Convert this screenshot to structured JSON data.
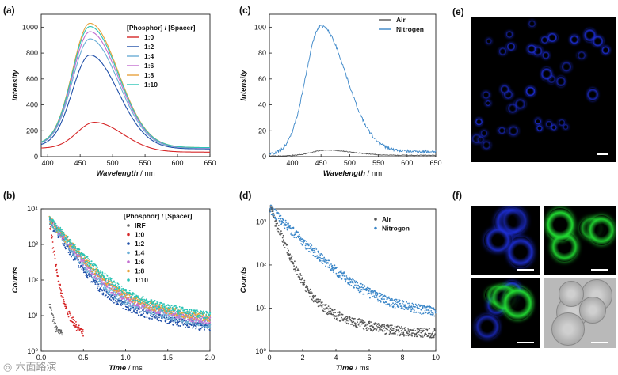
{
  "panel_labels": {
    "a": "(a)",
    "b": "(b)",
    "c": "(c)",
    "d": "(d)",
    "e": "(e)",
    "f": "(f)"
  },
  "watermark": "六面路演",
  "colors": {
    "ratio_1_0": "#d62728",
    "ratio_1_2": "#1f4fa8",
    "ratio_1_4": "#6baed6",
    "ratio_1_6": "#c36fd0",
    "ratio_1_8": "#e8a33d",
    "ratio_1_10": "#2bc4b6",
    "irf": "#666666",
    "air": "#555555",
    "nitrogen": "#3a86c8",
    "blue_channel": "#1e2fd6",
    "green_channel": "#22dd33"
  },
  "chart_data": [
    {
      "id": "a",
      "type": "line",
      "title": "",
      "xlabel": "Wavelength / nm",
      "ylabel": "Intensity",
      "xlim": [
        390,
        650
      ],
      "ylim": [
        0,
        1100
      ],
      "xticks": [
        400,
        450,
        500,
        550,
        600,
        650
      ],
      "yticks": [
        0,
        200,
        400,
        600,
        800,
        1000
      ],
      "legend_title": "[Phosphor] / [Spacer]",
      "legend_position": "top-right",
      "series": [
        {
          "name": "1:0",
          "peak_x": 472,
          "peak_y": 265,
          "start_y": 65,
          "end_y": 35
        },
        {
          "name": "1:2",
          "peak_x": 465,
          "peak_y": 785,
          "start_y": 80,
          "end_y": 60
        },
        {
          "name": "1:4",
          "peak_x": 465,
          "peak_y": 910,
          "start_y": 90,
          "end_y": 65
        },
        {
          "name": "1:6",
          "peak_x": 465,
          "peak_y": 965,
          "start_y": 92,
          "end_y": 68
        },
        {
          "name": "1:8",
          "peak_x": 465,
          "peak_y": 1030,
          "start_y": 95,
          "end_y": 70
        },
        {
          "name": "1:10",
          "peak_x": 465,
          "peak_y": 1005,
          "start_y": 95,
          "end_y": 70
        }
      ]
    },
    {
      "id": "b",
      "type": "scatter",
      "title": "",
      "xlabel": "Time / ms",
      "ylabel": "Counts",
      "xlim": [
        0,
        2.0
      ],
      "ylim_log": [
        1,
        10000
      ],
      "xticks": [
        0.0,
        0.5,
        1.0,
        1.5,
        2.0
      ],
      "ytick_labels": [
        "10⁰",
        "10¹",
        "10²",
        "10³",
        "10⁴"
      ],
      "log_y": true,
      "legend_title": "[Phosphor] / [Spacer]",
      "legend_position": "top-right",
      "series": [
        {
          "name": "IRF",
          "peak": 20,
          "tau": 0.03,
          "floor": 3,
          "end_x": 0.25
        },
        {
          "name": "1:0",
          "peak": 4500,
          "tau": 0.025,
          "floor": 1.5,
          "end_x": 0.5
        },
        {
          "name": "1:2",
          "peak": 4500,
          "tau": 0.12,
          "floor": 3,
          "end_x": 2.0
        },
        {
          "name": "1:4",
          "peak": 5000,
          "tau": 0.13,
          "floor": 3.5,
          "end_x": 2.0
        },
        {
          "name": "1:6",
          "peak": 5000,
          "tau": 0.14,
          "floor": 4,
          "end_x": 2.0
        },
        {
          "name": "1:8",
          "peak": 5000,
          "tau": 0.15,
          "floor": 4.5,
          "end_x": 2.0
        },
        {
          "name": "1:10",
          "peak": 5000,
          "tau": 0.16,
          "floor": 5,
          "end_x": 2.0
        }
      ]
    },
    {
      "id": "c",
      "type": "line",
      "title": "",
      "xlabel": "Wavelength / nm",
      "ylabel": "Intensity",
      "xlim": [
        360,
        650
      ],
      "ylim": [
        0,
        110
      ],
      "xticks": [
        400,
        450,
        500,
        550,
        600,
        650
      ],
      "yticks": [
        0,
        20,
        40,
        60,
        80,
        100
      ],
      "legend_position": "top-right",
      "series": [
        {
          "name": "Air",
          "peak_x": 460,
          "peak_y": 5,
          "start_y": 0.5,
          "end_y": 1
        },
        {
          "name": "Nitrogen",
          "peak_x": 450,
          "peak_y": 101,
          "start_y": 2,
          "end_y": 4
        }
      ]
    },
    {
      "id": "d",
      "type": "scatter",
      "title": "",
      "xlabel": "Time / ms",
      "ylabel": "Counts",
      "xlim": [
        0,
        10
      ],
      "ylim_log": [
        1,
        2000
      ],
      "xticks": [
        0,
        2,
        4,
        6,
        8,
        10
      ],
      "ytick_labels": [
        "10⁰",
        "10¹",
        "10²",
        "10³"
      ],
      "log_y": true,
      "legend_position": "top-right",
      "series": [
        {
          "name": "Air",
          "peak": 2000,
          "tau": 0.45,
          "floor": 2.5
        },
        {
          "name": "Nitrogen",
          "peak": 2000,
          "tau": 1.1,
          "floor": 4
        }
      ]
    }
  ]
}
